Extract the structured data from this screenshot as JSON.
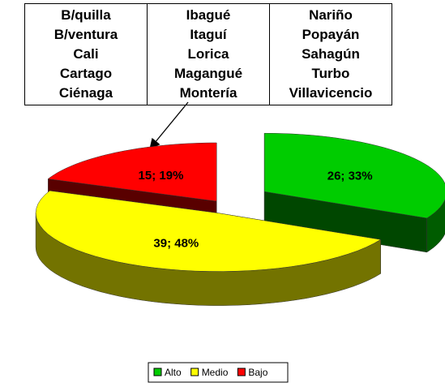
{
  "table": {
    "columns": [
      [
        "B/quilla",
        "B/ventura",
        "Cali",
        "Cartago",
        "Ciénaga"
      ],
      [
        "Ibagué",
        "Itaguí",
        "Lorica",
        "Magangué",
        "Montería"
      ],
      [
        "Nariño",
        "Popayán",
        "Sahagún",
        "Turbo",
        "Villavicencio"
      ]
    ]
  },
  "chart_data": {
    "type": "pie",
    "categories": [
      "Alto",
      "Medio",
      "Bajo"
    ],
    "values": [
      26,
      39,
      15
    ],
    "value_labels": [
      "26; 33%",
      "39; 48%",
      "15; 19%"
    ],
    "colors": [
      "#00cc00",
      "#ffff00",
      "#ff0000"
    ],
    "legend": "bottom"
  }
}
